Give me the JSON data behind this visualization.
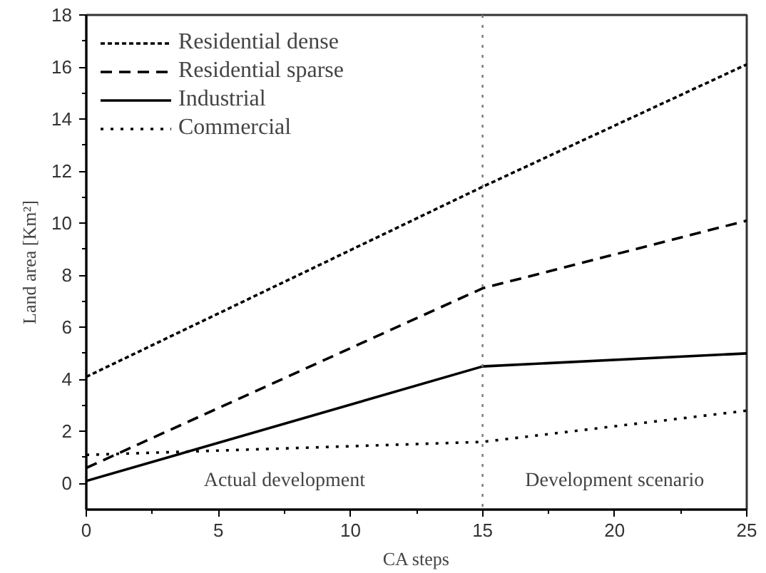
{
  "chart_data": {
    "type": "line",
    "xlabel": "CA steps",
    "ylabel": "Land area [Km²]",
    "x": [
      0,
      15,
      25
    ],
    "series": [
      {
        "name": "Residential dense",
        "color": "#000000",
        "values": [
          4.1,
          11.4,
          16.1
        ],
        "line_style": "dashed"
      },
      {
        "name": "Residential sparse",
        "color": "#000000",
        "values": [
          0.6,
          7.5,
          10.1
        ],
        "line_style": "dashed"
      },
      {
        "name": "Industrial",
        "color": "#000000",
        "values": [
          0.1,
          4.5,
          5.0
        ],
        "line_style": "solid"
      },
      {
        "name": "Commercial",
        "color": "#000000",
        "values": [
          1.1,
          1.6,
          2.8
        ],
        "line_style": "dotted"
      }
    ],
    "xlim": [
      0,
      25
    ],
    "ylim": [
      -1,
      18
    ],
    "xticks": [
      0,
      5,
      10,
      15,
      20,
      25
    ],
    "yticks": [
      0,
      2,
      4,
      6,
      8,
      10,
      12,
      14,
      16,
      18
    ],
    "ref_lines": [
      {
        "axis": "x",
        "value": 15,
        "color": "#777777",
        "line_style": "dotted"
      }
    ],
    "annotations": [
      "Actual development",
      "Development scenario"
    ],
    "grid": false,
    "legend": "top left",
    "marker": "none"
  }
}
